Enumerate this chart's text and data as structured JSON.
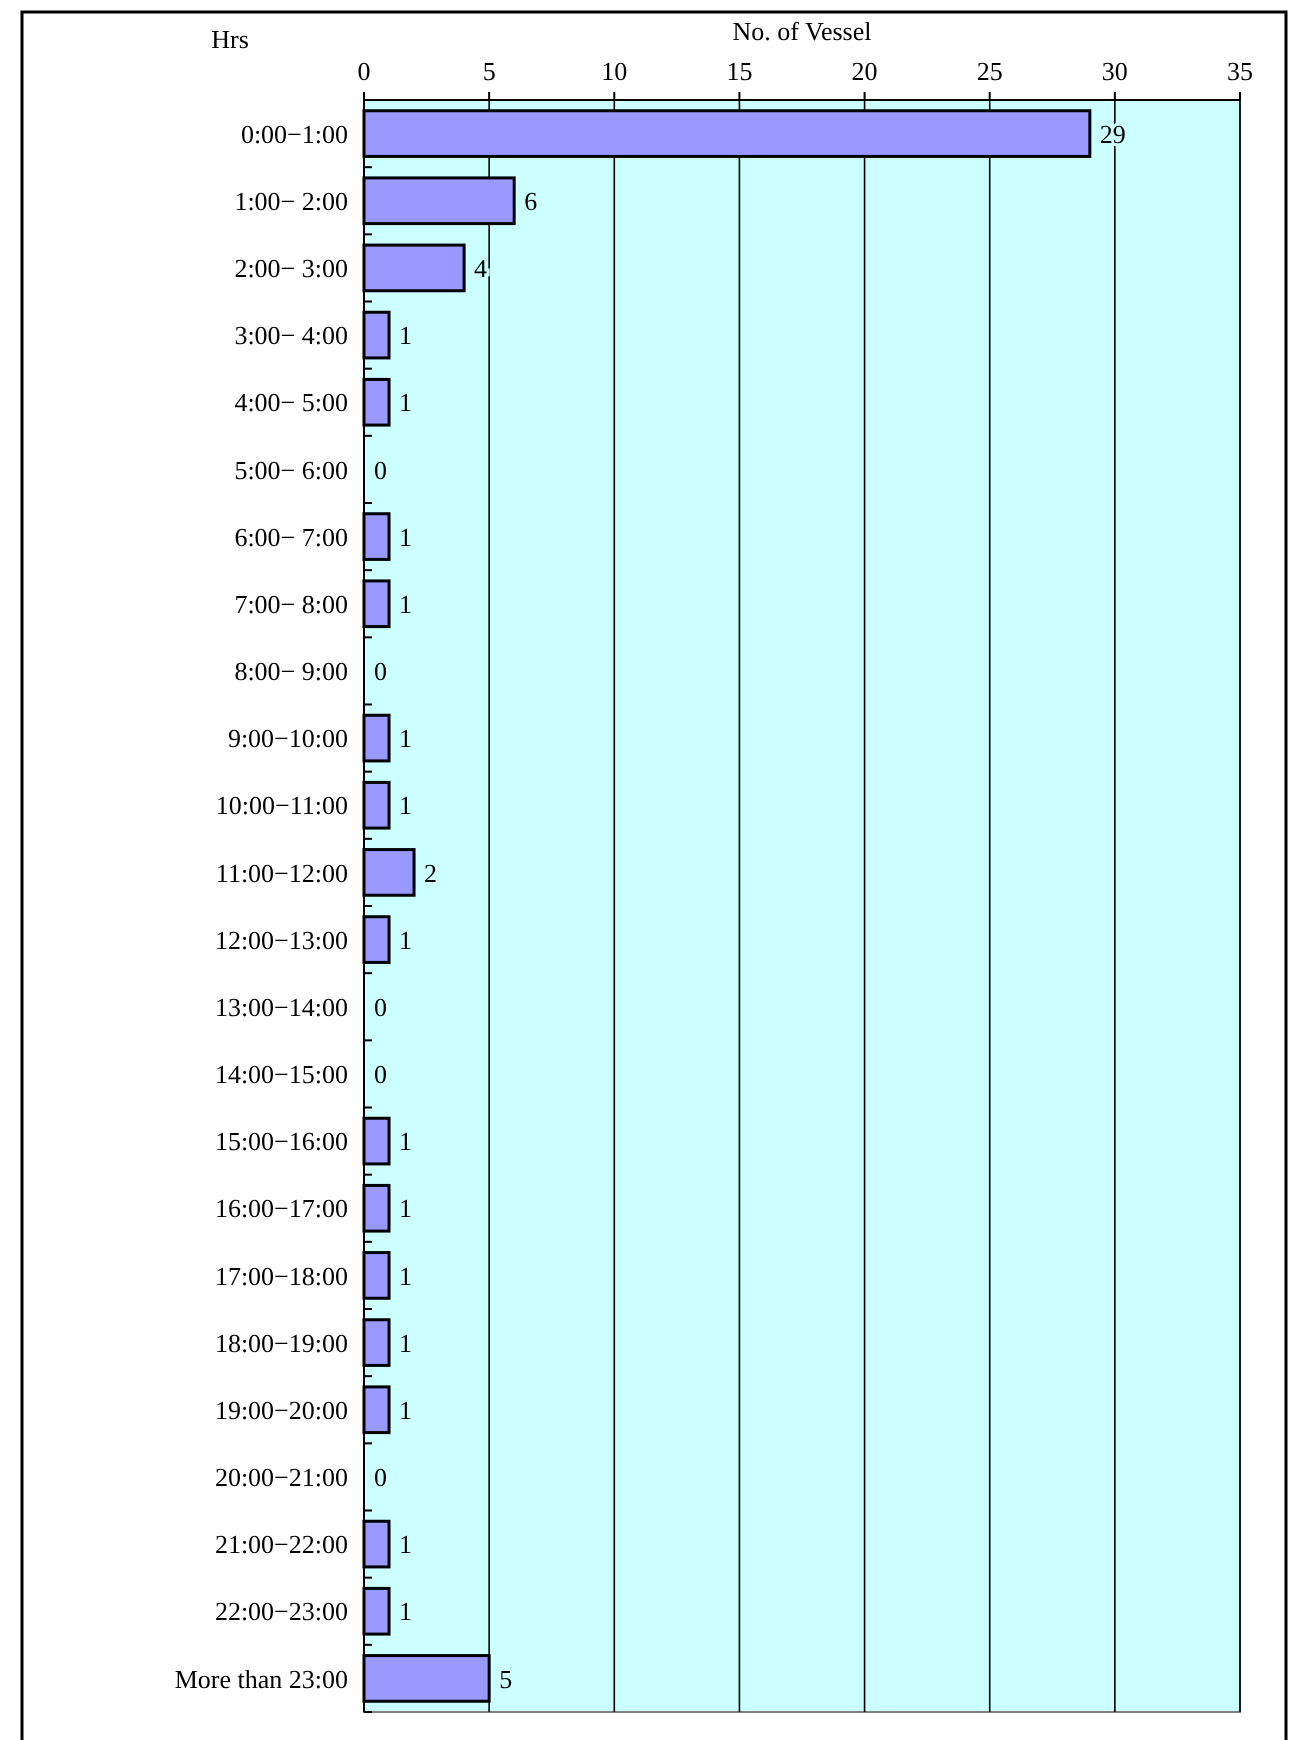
{
  "chart_data": {
    "type": "bar",
    "orientation": "horizontal",
    "xlabel": "No. of Vessel",
    "ylabel": "Hrs",
    "categories": [
      "0:00−1:00",
      "1:00− 2:00",
      "2:00− 3:00",
      "3:00− 4:00",
      "4:00− 5:00",
      "5:00− 6:00",
      "6:00− 7:00",
      "7:00− 8:00",
      "8:00− 9:00",
      "9:00−10:00",
      "10:00−11:00",
      "11:00−12:00",
      "12:00−13:00",
      "13:00−14:00",
      "14:00−15:00",
      "15:00−16:00",
      "16:00−17:00",
      "17:00−18:00",
      "18:00−19:00",
      "19:00−20:00",
      "20:00−21:00",
      "21:00−22:00",
      "22:00−23:00",
      "More than  23:00"
    ],
    "values": [
      29,
      6,
      4,
      1,
      1,
      0,
      1,
      1,
      0,
      1,
      1,
      2,
      1,
      0,
      0,
      1,
      1,
      1,
      1,
      1,
      0,
      1,
      1,
      5
    ],
    "color": "#9999ff",
    "xlim": [
      0,
      35
    ],
    "xticks": [
      0,
      5,
      10,
      15,
      20,
      25,
      30,
      35
    ],
    "grid": "x",
    "data_labels": true
  }
}
